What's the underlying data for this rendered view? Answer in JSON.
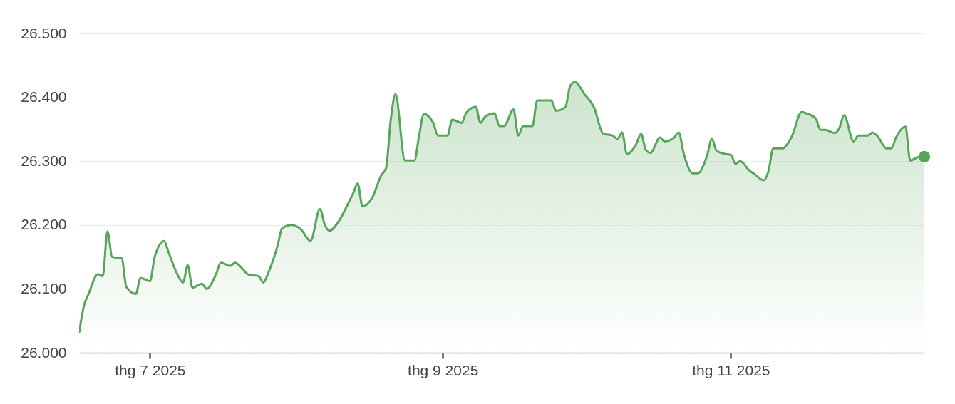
{
  "chart_data": {
    "type": "area",
    "grid": "y",
    "line_style": "solid",
    "xlim": [
      "2025-06-16",
      "2025-12-12"
    ],
    "xticks": [
      {
        "value": "2025-07-01",
        "label": "thg 7 2025"
      },
      {
        "value": "2025-09-01",
        "label": "thg 9 2025"
      },
      {
        "value": "2025-11-01",
        "label": "thg 11 2025"
      }
    ],
    "ylim": [
      26000,
      26500
    ],
    "yticks": [
      {
        "value": 26000,
        "label": "26.000"
      },
      {
        "value": 26100,
        "label": "26.100"
      },
      {
        "value": 26200,
        "label": "26.200"
      },
      {
        "value": 26300,
        "label": "26.300"
      },
      {
        "value": 26400,
        "label": "26.400"
      },
      {
        "value": 26500,
        "label": "26.500"
      }
    ],
    "x": [
      "2025-06-16",
      "2025-06-17",
      "2025-06-18",
      "2025-06-20",
      "2025-06-21",
      "2025-06-22",
      "2025-06-23",
      "2025-06-25",
      "2025-06-26",
      "2025-06-28",
      "2025-06-29",
      "2025-07-01",
      "2025-07-02",
      "2025-07-04",
      "2025-07-05",
      "2025-07-07",
      "2025-07-08",
      "2025-07-09",
      "2025-07-10",
      "2025-07-12",
      "2025-07-13",
      "2025-07-15",
      "2025-07-16",
      "2025-07-18",
      "2025-07-19",
      "2025-07-22",
      "2025-07-24",
      "2025-07-25",
      "2025-07-26",
      "2025-07-28",
      "2025-07-29",
      "2025-07-31",
      "2025-08-02",
      "2025-08-04",
      "2025-08-06",
      "2025-08-07",
      "2025-08-08",
      "2025-08-10",
      "2025-08-12",
      "2025-08-13",
      "2025-08-14",
      "2025-08-15",
      "2025-08-17",
      "2025-08-19",
      "2025-08-20",
      "2025-08-21",
      "2025-08-22",
      "2025-08-24",
      "2025-08-26",
      "2025-08-27",
      "2025-08-28",
      "2025-08-30",
      "2025-08-31",
      "2025-09-02",
      "2025-09-03",
      "2025-09-05",
      "2025-09-06",
      "2025-09-08",
      "2025-09-09",
      "2025-09-10",
      "2025-09-12",
      "2025-09-13",
      "2025-09-14",
      "2025-09-16",
      "2025-09-17",
      "2025-09-18",
      "2025-09-20",
      "2025-09-21",
      "2025-09-24",
      "2025-09-25",
      "2025-09-27",
      "2025-09-28",
      "2025-09-29",
      "2025-10-01",
      "2025-10-03",
      "2025-10-05",
      "2025-10-07",
      "2025-10-08",
      "2025-10-09",
      "2025-10-10",
      "2025-10-12",
      "2025-10-13",
      "2025-10-14",
      "2025-10-15",
      "2025-10-17",
      "2025-10-18",
      "2025-10-20",
      "2025-10-21",
      "2025-10-22",
      "2025-10-24",
      "2025-10-25",
      "2025-10-27",
      "2025-10-28",
      "2025-10-29",
      "2025-10-31",
      "2025-11-01",
      "2025-11-02",
      "2025-11-03",
      "2025-11-05",
      "2025-11-06",
      "2025-11-08",
      "2025-11-09",
      "2025-11-10",
      "2025-11-12",
      "2025-11-13",
      "2025-11-14",
      "2025-11-16",
      "2025-11-17",
      "2025-11-19",
      "2025-11-20",
      "2025-11-21",
      "2025-11-23",
      "2025-11-24",
      "2025-11-25",
      "2025-11-27",
      "2025-11-28",
      "2025-11-30",
      "2025-12-01",
      "2025-12-02",
      "2025-12-04",
      "2025-12-05",
      "2025-12-06",
      "2025-12-08",
      "2025-12-09",
      "2025-12-11",
      "2025-12-12"
    ],
    "series": [
      {
        "color": "#57a55a",
        "values": [
          26031,
          26073,
          26092,
          26123,
          26120,
          26190,
          26150,
          26148,
          26103,
          26092,
          26117,
          26112,
          26150,
          26175,
          26156,
          26120,
          26110,
          26137,
          26102,
          26108,
          26100,
          26123,
          26141,
          26136,
          26141,
          26122,
          26120,
          26110,
          26124,
          26167,
          26195,
          26200,
          26193,
          26175,
          26225,
          26201,
          26191,
          26206,
          26234,
          26249,
          26265,
          26229,
          26242,
          26278,
          26289,
          26365,
          26405,
          26301,
          26301,
          26340,
          26374,
          26360,
          26340,
          26340,
          26365,
          26360,
          26376,
          26385,
          26360,
          26370,
          26375,
          26355,
          26355,
          26381,
          26340,
          26355,
          26355,
          26395,
          26395,
          26379,
          26385,
          26418,
          26424,
          26405,
          26385,
          26343,
          26340,
          26335,
          26345,
          26311,
          26327,
          26343,
          26318,
          26313,
          26337,
          26331,
          26337,
          26345,
          26313,
          26281,
          26281,
          26309,
          26335,
          26316,
          26311,
          26310,
          26296,
          26300,
          26285,
          26280,
          26270,
          26285,
          26320,
          26320,
          26327,
          26340,
          26377,
          26375,
          26367,
          26349,
          26349,
          26344,
          26352,
          26372,
          26331,
          26340,
          26340,
          26345,
          26340,
          26320,
          26320,
          26337,
          26354,
          26301,
          26307,
          26307
        ]
      },
      {
        "type": "scatter",
        "marker": "circle",
        "color": "#57a55a",
        "x": [
          "2025-12-12"
        ],
        "values": [
          26307
        ]
      }
    ]
  }
}
